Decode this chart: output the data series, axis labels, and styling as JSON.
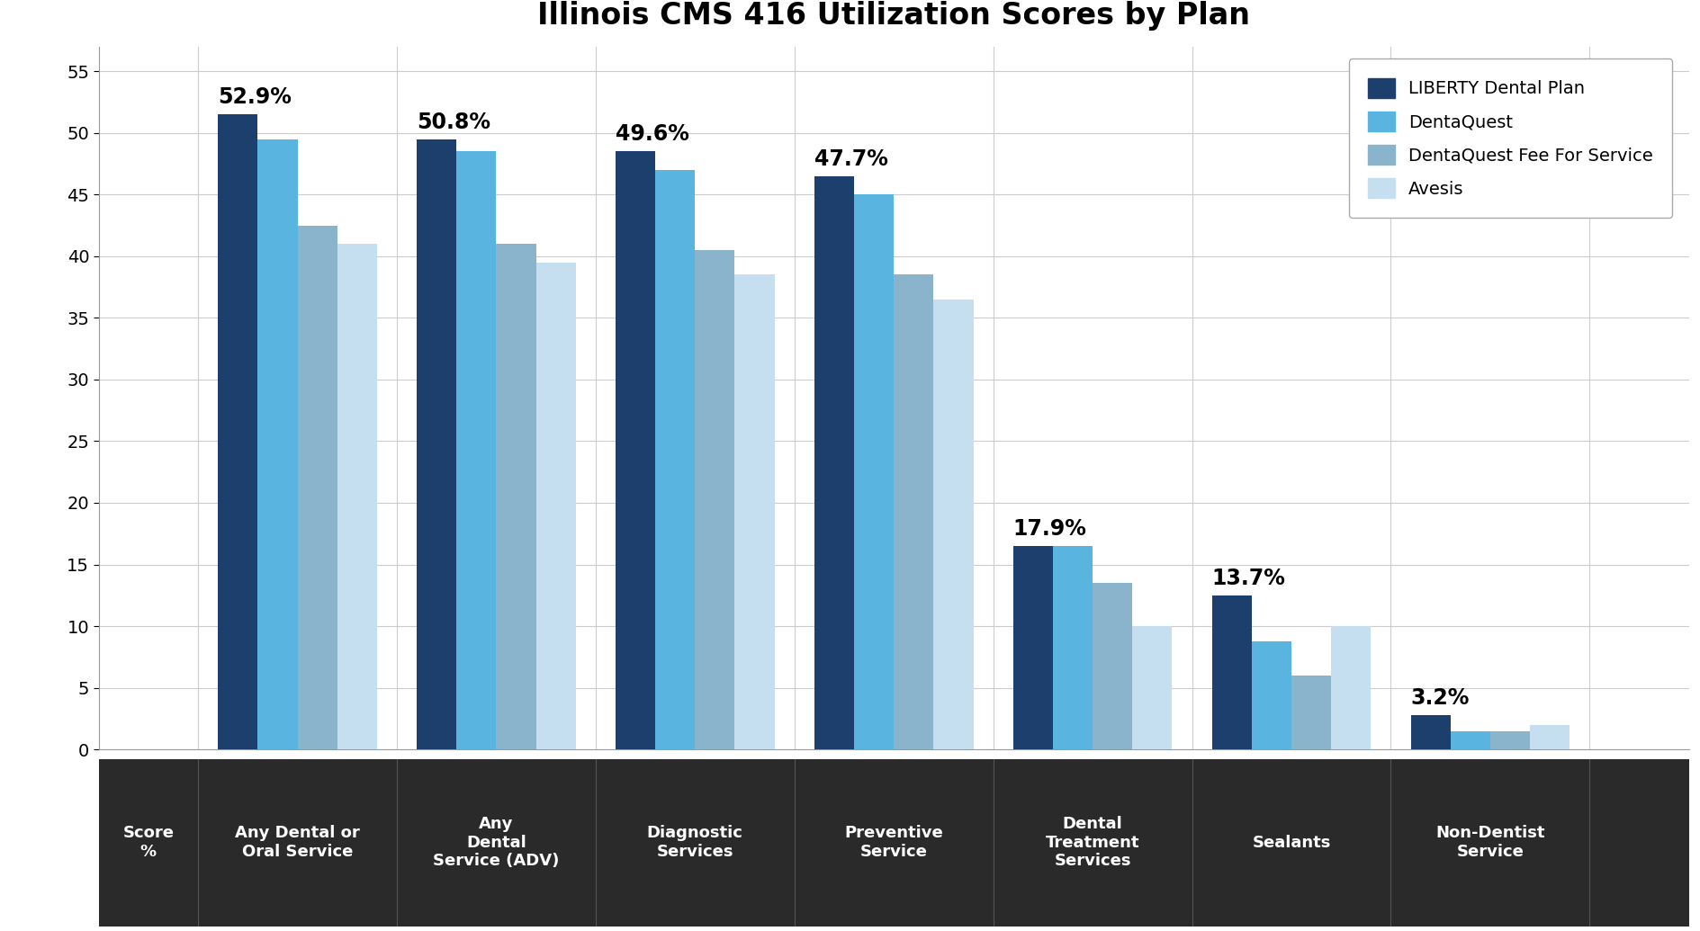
{
  "title": "Illinois CMS 416 Utilization Scores by Plan",
  "categories": [
    "Any Dental or\nOral Service",
    "Any\nDental\nService (ADV)",
    "Diagnostic\nServices",
    "Preventive\nService",
    "Dental\nTreatment\nServices",
    "Sealants",
    "Non-Dentist\nService"
  ],
  "score_label": "Score\n%",
  "series_labels": [
    "LIBERTY Dental Plan",
    "DentaQuest",
    "DentaQuest Fee For Service",
    "Avesis"
  ],
  "series_values": [
    [
      51.5,
      49.5,
      48.5,
      46.5,
      16.5,
      12.5,
      2.8
    ],
    [
      49.5,
      48.5,
      47.0,
      45.0,
      16.5,
      8.8,
      1.5
    ],
    [
      42.5,
      41.0,
      40.5,
      38.5,
      13.5,
      6.0,
      1.5
    ],
    [
      41.0,
      39.5,
      38.5,
      36.5,
      10.0,
      10.0,
      2.0
    ]
  ],
  "series_colors": [
    "#1c3f6e",
    "#5ab4e0",
    "#8ab4cc",
    "#c5dff0"
  ],
  "annotations": [
    "52.9%",
    "50.8%",
    "49.6%",
    "47.7%",
    "17.9%",
    "13.7%",
    "3.2%"
  ],
  "ylim": [
    0,
    57
  ],
  "yticks": [
    0,
    5,
    10,
    15,
    20,
    25,
    30,
    35,
    40,
    45,
    50,
    55
  ],
  "title_fontsize": 24,
  "legend_fontsize": 14,
  "tick_fontsize": 14,
  "annotation_fontsize": 17,
  "bar_width": 0.2,
  "footer_color": "#2a2a2a",
  "footer_text_color": "#ffffff",
  "footer_fontsize": 13,
  "grid_color": "#cccccc"
}
